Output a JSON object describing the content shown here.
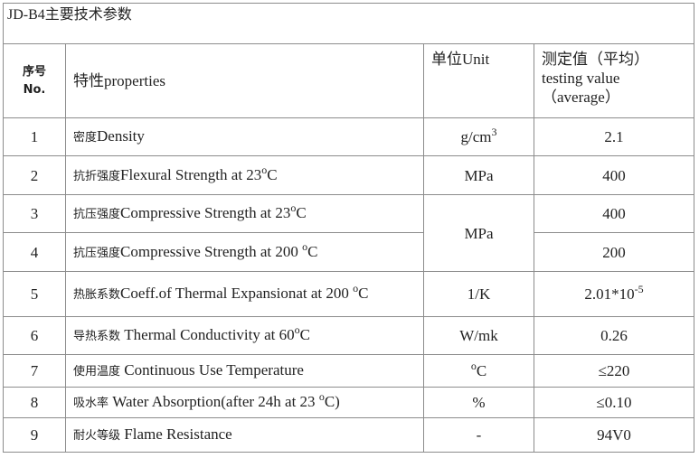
{
  "title": "JD-B4主要技术参数",
  "header": {
    "no": [
      "序号",
      "No."
    ],
    "property": "特性properties",
    "unit": "单位Unit",
    "value": "测定值（平均）testing value（average）"
  },
  "rows": [
    {
      "no": "1",
      "property": [
        "密度",
        "Density"
      ],
      "unit": [
        "g/cm",
        {
          "sup": "3"
        }
      ],
      "value": [
        "2.1"
      ]
    },
    {
      "no": "2",
      "property": [
        "抗折强度",
        "Flexural Strength at 23",
        {
          "sup": "o"
        },
        "C"
      ],
      "unit": [
        "MPa"
      ],
      "value": [
        "400"
      ]
    },
    {
      "no": "3",
      "property": [
        "抗压强度",
        "Compressive Strength at 23",
        {
          "sup": "o"
        },
        "C"
      ],
      "unit": [
        "MPa"
      ],
      "value": [
        "400"
      ]
    },
    {
      "no": "4",
      "property": [
        "抗压强度",
        "Compressive Strength at 200 ",
        {
          "sup": "o"
        },
        "C"
      ],
      "value": [
        "200"
      ]
    },
    {
      "no": "5",
      "property": [
        "热胀系数",
        "Coeff.of Thermal Expansionat at 200 ",
        {
          "sup": "o"
        },
        "C"
      ],
      "unit": [
        "1/K"
      ],
      "value": [
        "2.01*10",
        {
          "sup": "-5"
        }
      ]
    },
    {
      "no": "6",
      "property": [
        "导热系数",
        " Thermal Conductivity at 60",
        {
          "sup": "o"
        },
        "C"
      ],
      "unit": [
        "W/mk"
      ],
      "value": [
        "0.26"
      ]
    },
    {
      "no": "7",
      "property": [
        "使用温度",
        " Continuous Use Temperature"
      ],
      "unit": [
        {
          "sup": "o"
        },
        "C"
      ],
      "value": [
        "≤220"
      ]
    },
    {
      "no": "8",
      "property": [
        "吸水率",
        " Water Absorption(after 24h at 23 ",
        {
          "sup": "o"
        },
        "C)"
      ],
      "unit": [
        "%"
      ],
      "value": [
        "≤0.10"
      ]
    },
    {
      "no": "9",
      "property": [
        "耐火等级",
        " Flame Resistance"
      ],
      "unit": [
        "-"
      ],
      "value": [
        "94V0"
      ]
    }
  ]
}
